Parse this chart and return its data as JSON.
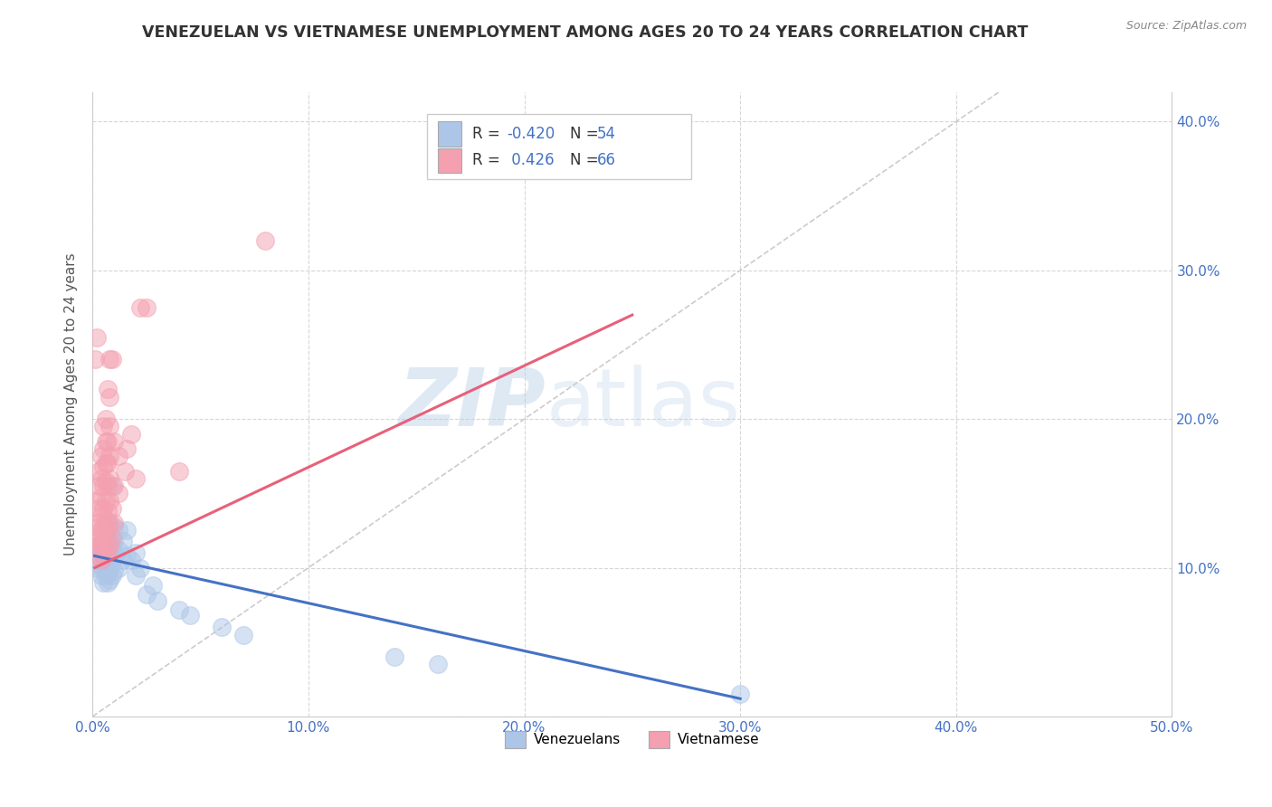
{
  "title": "VENEZUELAN VS VIETNAMESE UNEMPLOYMENT AMONG AGES 20 TO 24 YEARS CORRELATION CHART",
  "source": "Source: ZipAtlas.com",
  "ylabel": "Unemployment Among Ages 20 to 24 years",
  "xlim": [
    0,
    0.5
  ],
  "ylim": [
    0,
    0.42
  ],
  "xticks": [
    0.0,
    0.1,
    0.2,
    0.3,
    0.4,
    0.5
  ],
  "yticks": [
    0.0,
    0.1,
    0.2,
    0.3,
    0.4
  ],
  "xticklabels": [
    "0.0%",
    "10.0%",
    "20.0%",
    "30.0%",
    "40.0%",
    "50.0%"
  ],
  "yticklabels_right": [
    "10.0%",
    "20.0%",
    "30.0%",
    "40.0%"
  ],
  "venezuelan_color": "#adc6e8",
  "vietnamese_color": "#f4a0b0",
  "venezuelan_line_color": "#4472c4",
  "vietnamese_line_color": "#e8607a",
  "venezuelan_R": -0.42,
  "venezuelan_N": 54,
  "vietnamese_R": 0.426,
  "vietnamese_N": 66,
  "legend_label_venezuelan": "Venezuelans",
  "legend_label_vietnamese": "Vietnamese",
  "watermark_zip": "ZIP",
  "watermark_atlas": "atlas",
  "grid_color": "#cccccc",
  "diagonal_color": "#cccccc",
  "tick_color": "#4472c4",
  "venezuelan_scatter": [
    [
      0.002,
      0.1
    ],
    [
      0.003,
      0.105
    ],
    [
      0.003,
      0.115
    ],
    [
      0.004,
      0.095
    ],
    [
      0.004,
      0.1
    ],
    [
      0.004,
      0.11
    ],
    [
      0.005,
      0.09
    ],
    [
      0.005,
      0.1
    ],
    [
      0.005,
      0.108
    ],
    [
      0.005,
      0.115
    ],
    [
      0.006,
      0.095
    ],
    [
      0.006,
      0.1
    ],
    [
      0.006,
      0.108
    ],
    [
      0.006,
      0.115
    ],
    [
      0.006,
      0.125
    ],
    [
      0.007,
      0.09
    ],
    [
      0.007,
      0.098
    ],
    [
      0.007,
      0.108
    ],
    [
      0.007,
      0.115
    ],
    [
      0.007,
      0.13
    ],
    [
      0.008,
      0.092
    ],
    [
      0.008,
      0.1
    ],
    [
      0.008,
      0.11
    ],
    [
      0.008,
      0.118
    ],
    [
      0.008,
      0.128
    ],
    [
      0.009,
      0.095
    ],
    [
      0.009,
      0.105
    ],
    [
      0.009,
      0.115
    ],
    [
      0.009,
      0.155
    ],
    [
      0.01,
      0.098
    ],
    [
      0.01,
      0.108
    ],
    [
      0.01,
      0.118
    ],
    [
      0.01,
      0.128
    ],
    [
      0.012,
      0.1
    ],
    [
      0.012,
      0.112
    ],
    [
      0.012,
      0.125
    ],
    [
      0.014,
      0.105
    ],
    [
      0.014,
      0.118
    ],
    [
      0.016,
      0.108
    ],
    [
      0.016,
      0.125
    ],
    [
      0.018,
      0.105
    ],
    [
      0.02,
      0.095
    ],
    [
      0.02,
      0.11
    ],
    [
      0.022,
      0.1
    ],
    [
      0.025,
      0.082
    ],
    [
      0.028,
      0.088
    ],
    [
      0.03,
      0.078
    ],
    [
      0.04,
      0.072
    ],
    [
      0.045,
      0.068
    ],
    [
      0.06,
      0.06
    ],
    [
      0.07,
      0.055
    ],
    [
      0.14,
      0.04
    ],
    [
      0.16,
      0.035
    ],
    [
      0.3,
      0.015
    ]
  ],
  "vietnamese_scatter": [
    [
      0.001,
      0.12
    ],
    [
      0.002,
      0.115
    ],
    [
      0.002,
      0.13
    ],
    [
      0.002,
      0.145
    ],
    [
      0.003,
      0.108
    ],
    [
      0.003,
      0.118
    ],
    [
      0.003,
      0.128
    ],
    [
      0.003,
      0.14
    ],
    [
      0.003,
      0.155
    ],
    [
      0.003,
      0.165
    ],
    [
      0.004,
      0.105
    ],
    [
      0.004,
      0.115
    ],
    [
      0.004,
      0.125
    ],
    [
      0.004,
      0.135
    ],
    [
      0.004,
      0.148
    ],
    [
      0.004,
      0.16
    ],
    [
      0.004,
      0.175
    ],
    [
      0.005,
      0.108
    ],
    [
      0.005,
      0.118
    ],
    [
      0.005,
      0.128
    ],
    [
      0.005,
      0.14
    ],
    [
      0.005,
      0.155
    ],
    [
      0.005,
      0.168
    ],
    [
      0.005,
      0.18
    ],
    [
      0.005,
      0.195
    ],
    [
      0.006,
      0.11
    ],
    [
      0.006,
      0.12
    ],
    [
      0.006,
      0.132
    ],
    [
      0.006,
      0.145
    ],
    [
      0.006,
      0.158
    ],
    [
      0.006,
      0.17
    ],
    [
      0.006,
      0.185
    ],
    [
      0.006,
      0.2
    ],
    [
      0.007,
      0.112
    ],
    [
      0.007,
      0.125
    ],
    [
      0.007,
      0.138
    ],
    [
      0.007,
      0.155
    ],
    [
      0.007,
      0.17
    ],
    [
      0.007,
      0.185
    ],
    [
      0.007,
      0.22
    ],
    [
      0.008,
      0.115
    ],
    [
      0.008,
      0.13
    ],
    [
      0.008,
      0.145
    ],
    [
      0.008,
      0.16
    ],
    [
      0.008,
      0.175
    ],
    [
      0.008,
      0.195
    ],
    [
      0.008,
      0.215
    ],
    [
      0.008,
      0.24
    ],
    [
      0.009,
      0.12
    ],
    [
      0.009,
      0.14
    ],
    [
      0.009,
      0.24
    ],
    [
      0.01,
      0.13
    ],
    [
      0.01,
      0.155
    ],
    [
      0.01,
      0.185
    ],
    [
      0.012,
      0.15
    ],
    [
      0.012,
      0.175
    ],
    [
      0.015,
      0.165
    ],
    [
      0.016,
      0.18
    ],
    [
      0.018,
      0.19
    ],
    [
      0.02,
      0.16
    ],
    [
      0.022,
      0.275
    ],
    [
      0.025,
      0.275
    ],
    [
      0.04,
      0.165
    ],
    [
      0.08,
      0.32
    ],
    [
      0.001,
      0.24
    ],
    [
      0.002,
      0.255
    ]
  ],
  "ven_trendline": [
    [
      0.001,
      0.108
    ],
    [
      0.3,
      0.012
    ]
  ],
  "vie_trendline": [
    [
      0.001,
      0.1
    ],
    [
      0.25,
      0.27
    ]
  ]
}
